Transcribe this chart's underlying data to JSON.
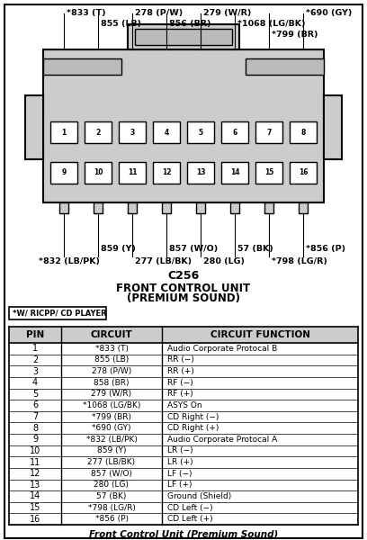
{
  "title_connector": "C256",
  "title_unit": "FRONT CONTROL UNIT",
  "title_sub": "(PREMIUM SOUND)",
  "note_label": "*W/ RICPP/ CD PLAYER",
  "footer": "Front Control Unit (Premium Sound)",
  "table_headers": [
    "PIN",
    "CIRCUIT",
    "CIRCUIT FUNCTION"
  ],
  "pins": [
    1,
    2,
    3,
    4,
    5,
    6,
    7,
    8,
    9,
    10,
    11,
    12,
    13,
    14,
    15,
    16
  ],
  "circuits": [
    "*833 (T)",
    "855 (LB)",
    "278 (P/W)",
    "858 (BR)",
    "279 (W/R)",
    "*1068 (LG/BK)",
    "*799 (BR)",
    "*690 (GY)",
    "*832 (LB/PK)",
    "859 (Y)",
    "277 (LB/BK)",
    "857 (W/O)",
    "280 (LG)",
    "57 (BK)",
    "*798 (LG/R)",
    "*856 (P)"
  ],
  "functions": [
    "Audio Corporate Protocal B",
    "RR (−)",
    "RR (+)",
    "RF (−)",
    "RF (+)",
    "ASYS On",
    "CD Right (−)",
    "CD Right (+)",
    "Audio Corporate Protocal A",
    "LR (−)",
    "LR (+)",
    "LF (−)",
    "LF (+)",
    "Ground (Shield)",
    "CD Left (−)",
    "CD Left (+)"
  ],
  "connector_fill": "#cccccc",
  "pin_fill": "#ffffff",
  "header_fill": "#cccccc"
}
